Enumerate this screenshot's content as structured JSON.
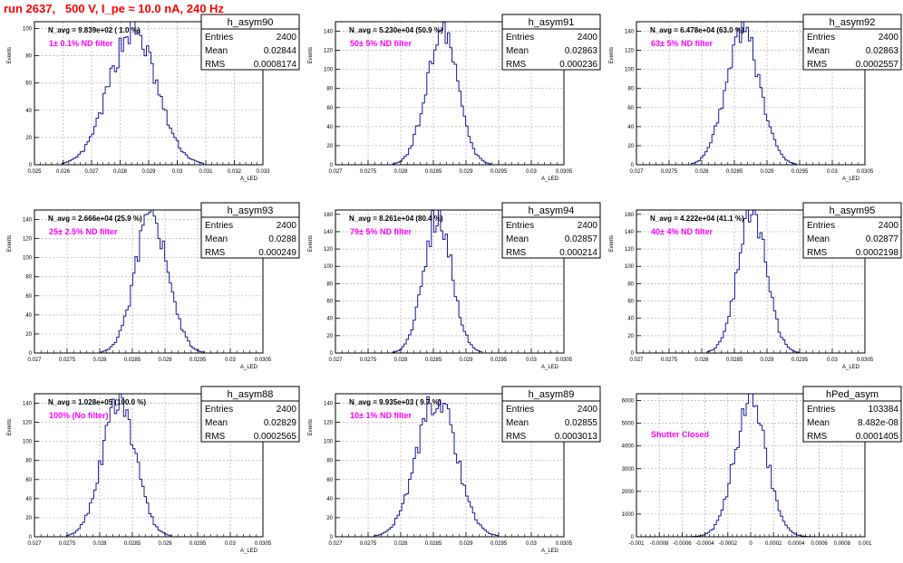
{
  "title": "run 2637,   500 V, I_pe ≈ 10.0 nA, 240 Hz",
  "chart_data": [
    {
      "type": "histogram",
      "name": "h_asym90",
      "navg": "N_avg = 9.839e+02 ( 1.0 %)",
      "filter": "1± 0.1% ND filter",
      "stats": [
        [
          "Entries",
          "2400"
        ],
        [
          "Mean",
          "0.02844"
        ],
        [
          "RMS",
          "0.0008174"
        ]
      ],
      "xlabel": "A_LED",
      "ylabel": "Events",
      "xlim": [
        0.025,
        0.033
      ],
      "ylim": [
        0,
        105
      ],
      "xticks": [
        "0.025",
        "0.026",
        "0.027",
        "0.028",
        "0.029",
        "0.03",
        "0.031",
        "0.032",
        "0.033"
      ],
      "yticks": [
        0,
        20,
        40,
        60,
        80,
        100
      ],
      "mean": 0.02844,
      "rms": 0.0008174,
      "peak": 99
    },
    {
      "type": "histogram",
      "name": "h_asym91",
      "navg": "N_avg = 5.230e+04 (50.9 %)",
      "filter": "50± 5% ND filter",
      "stats": [
        [
          "Entries",
          "2400"
        ],
        [
          "Mean",
          "0.02863"
        ],
        [
          "RMS",
          "0.000236"
        ]
      ],
      "xlabel": "A_LED",
      "ylabel": "Events",
      "xlim": [
        0.027,
        0.0305
      ],
      "ylim": [
        0,
        150
      ],
      "xticks": [
        "0.027",
        "0.0275",
        "0.028",
        "0.0285",
        "0.029",
        "0.0295",
        "0.03",
        "0.0305"
      ],
      "yticks": [
        0,
        20,
        40,
        60,
        80,
        100,
        120,
        140
      ],
      "mean": 0.02863,
      "rms": 0.000236,
      "peak": 142
    },
    {
      "type": "histogram",
      "name": "h_asym92",
      "navg": "N_avg = 6.478e+04 (63.0 %)",
      "filter": "63± 5% ND filter",
      "stats": [
        [
          "Entries",
          "2400"
        ],
        [
          "Mean",
          "0.02863"
        ],
        [
          "RMS",
          "0.0002557"
        ]
      ],
      "xlabel": "A_LED",
      "ylabel": "Events",
      "xlim": [
        0.027,
        0.0305
      ],
      "ylim": [
        0,
        150
      ],
      "xticks": [
        "0.027",
        "0.0275",
        "0.028",
        "0.0285",
        "0.029",
        "0.0295",
        "0.03",
        "0.0305"
      ],
      "yticks": [
        0,
        20,
        40,
        60,
        80,
        100,
        120,
        140
      ],
      "mean": 0.02863,
      "rms": 0.0002557,
      "peak": 146
    },
    {
      "type": "histogram",
      "name": "h_asym93",
      "navg": "N_avg = 2.666e+04 (25.9 %)",
      "filter": "25± 2.5% ND filter",
      "stats": [
        [
          "Entries",
          "2400"
        ],
        [
          "Mean",
          "0.0288"
        ],
        [
          "RMS",
          "0.000249"
        ]
      ],
      "xlabel": "A_LED",
      "ylabel": "Events",
      "xlim": [
        0.027,
        0.0305
      ],
      "ylim": [
        0,
        150
      ],
      "xticks": [
        "0.027",
        "0.0275",
        "0.028",
        "0.0285",
        "0.029",
        "0.0295",
        "0.03",
        "0.0305"
      ],
      "yticks": [
        0,
        20,
        40,
        60,
        80,
        100,
        120,
        140
      ],
      "mean": 0.0288,
      "rms": 0.000249,
      "peak": 146
    },
    {
      "type": "histogram",
      "name": "h_asym94",
      "navg": "N_avg = 8.261e+04 (80.4 %)",
      "filter": "79± 5% ND filter",
      "stats": [
        [
          "Entries",
          "2400"
        ],
        [
          "Mean",
          "0.02857"
        ],
        [
          "RMS",
          "0.000214"
        ]
      ],
      "xlabel": "A_LED",
      "ylabel": "Events",
      "xlim": [
        0.027,
        0.0305
      ],
      "ylim": [
        0,
        165
      ],
      "xticks": [
        "0.027",
        "0.0275",
        "0.028",
        "0.0285",
        "0.029",
        "0.0295",
        "0.03",
        "0.0305"
      ],
      "yticks": [
        0,
        20,
        40,
        60,
        80,
        100,
        120,
        140,
        160
      ],
      "mean": 0.02857,
      "rms": 0.000214,
      "peak": 160
    },
    {
      "type": "histogram",
      "name": "h_asym95",
      "navg": "N_avg = 4.222e+04 (41.1 %)",
      "filter": "40± 4% ND filter",
      "stats": [
        [
          "Entries",
          "2400"
        ],
        [
          "Mean",
          "0.02877"
        ],
        [
          "RMS",
          "0.0002198"
        ]
      ],
      "xlabel": "A_LED",
      "ylabel": "Events",
      "xlim": [
        0.027,
        0.0305
      ],
      "ylim": [
        0,
        165
      ],
      "xticks": [
        "0.027",
        "0.0275",
        "0.028",
        "0.0285",
        "0.029",
        "0.0295",
        "0.03",
        "0.0305"
      ],
      "yticks": [
        0,
        20,
        40,
        60,
        80,
        100,
        120,
        140,
        160
      ],
      "mean": 0.02877,
      "rms": 0.0002198,
      "peak": 160
    },
    {
      "type": "histogram",
      "name": "h_asym88",
      "navg": "N_avg = 1.028e+05 (100.0 %)",
      "filter": "100% (No filter)",
      "stats": [
        [
          "Entries",
          "2400"
        ],
        [
          "Mean",
          "0.02829"
        ],
        [
          "RMS",
          "0.0002565"
        ]
      ],
      "xlabel": "A_LED",
      "ylabel": "Events",
      "xlim": [
        0.027,
        0.0305
      ],
      "ylim": [
        0,
        150
      ],
      "xticks": [
        "0.027",
        "0.0275",
        "0.028",
        "0.0285",
        "0.029",
        "0.0295",
        "0.03",
        "0.0305"
      ],
      "yticks": [
        0,
        20,
        40,
        60,
        80,
        100,
        120,
        140
      ],
      "mean": 0.02829,
      "rms": 0.0002565,
      "peak": 140
    },
    {
      "type": "histogram",
      "name": "h_asym89",
      "navg": "N_avg = 9.935e+03 ( 9.7 %)",
      "filter": "10± 1% ND filter",
      "stats": [
        [
          "Entries",
          "2400"
        ],
        [
          "Mean",
          "0.02855"
        ],
        [
          "RMS",
          "0.0003013"
        ]
      ],
      "xlabel": "A_LED",
      "ylabel": "Events",
      "xlim": [
        0.027,
        0.0305
      ],
      "ylim": [
        0,
        150
      ],
      "xticks": [
        "0.027",
        "0.0275",
        "0.028",
        "0.0285",
        "0.029",
        "0.0295",
        "0.03",
        "0.0305"
      ],
      "yticks": [
        0,
        20,
        40,
        60,
        80,
        100,
        120,
        140
      ],
      "mean": 0.02855,
      "rms": 0.0003013,
      "peak": 145
    },
    {
      "type": "histogram",
      "name": "hPed_asym",
      "navg": "",
      "filter": "Shutter Closed",
      "stats": [
        [
          "Entries",
          "103384"
        ],
        [
          "Mean",
          "8.482e-08"
        ],
        [
          "RMS",
          "0.0001405"
        ]
      ],
      "xlabel": "",
      "ylabel": "",
      "xlim": [
        -0.001,
        0.001
      ],
      "ylim": [
        0,
        6300
      ],
      "xticks": [
        "-0.001",
        "-0.0008",
        "-0.0006",
        "-0.0004",
        "-0.0002",
        "0",
        "0.0002",
        "0.0004",
        "0.0006",
        "0.0008",
        "0.001"
      ],
      "yticks": [
        0,
        1000,
        2000,
        3000,
        4000,
        5000,
        6000
      ],
      "mean": 8.48e-08,
      "rms": 0.0001405,
      "peak": 5900
    }
  ]
}
